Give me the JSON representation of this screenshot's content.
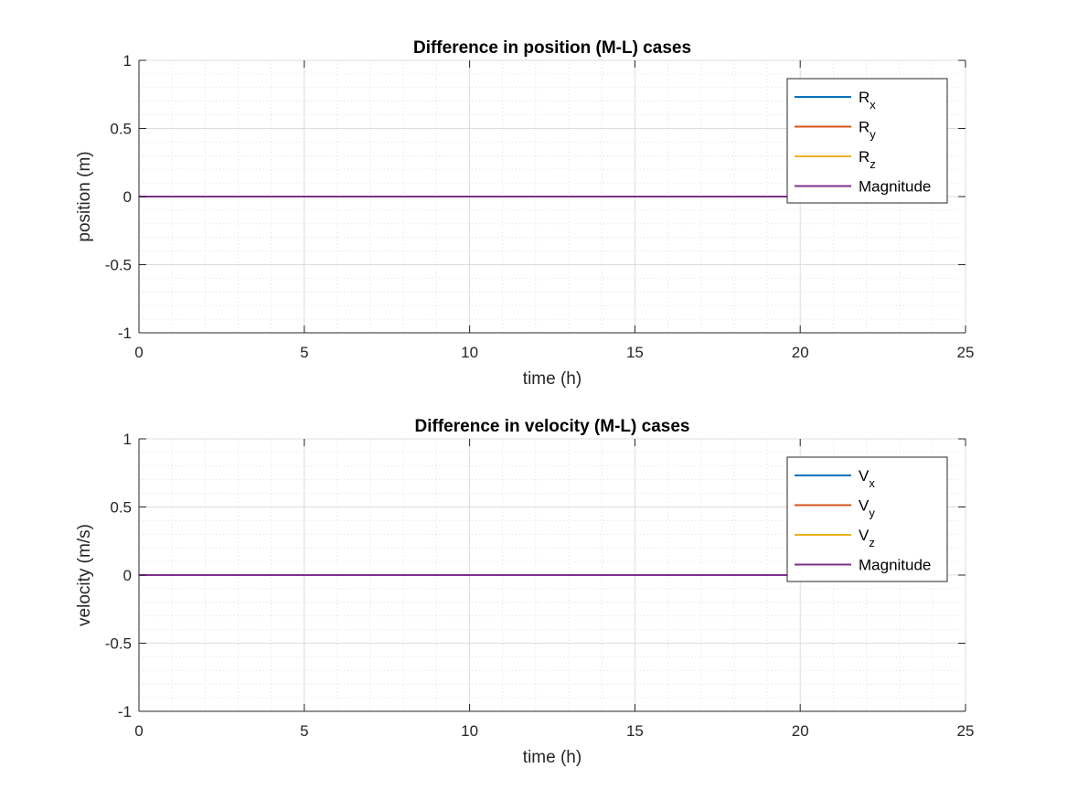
{
  "chart_data": [
    {
      "type": "line",
      "title": "Difference in position (M-L) cases",
      "xlabel": "time (h)",
      "ylabel": "position (m)",
      "xlim": [
        0,
        25
      ],
      "ylim": [
        -1,
        1
      ],
      "xticks": [
        0,
        5,
        10,
        15,
        20,
        25
      ],
      "yticks": [
        -1,
        -0.5,
        0,
        0.5,
        1
      ],
      "xtick_labels": [
        "0",
        "5",
        "10",
        "15",
        "20",
        "25"
      ],
      "ytick_labels": [
        "-1",
        "-0.5",
        "0",
        "0.5",
        "1"
      ],
      "grid": true,
      "minor_grid": true,
      "legend_position": "top-right",
      "series": [
        {
          "name": "R",
          "sub": "x",
          "color": "#0072BD",
          "x": [
            0,
            24
          ],
          "y": [
            0,
            0
          ]
        },
        {
          "name": "R",
          "sub": "y",
          "color": "#D95319",
          "x": [
            0,
            24
          ],
          "y": [
            0,
            0
          ]
        },
        {
          "name": "R",
          "sub": "z",
          "color": "#EDB120",
          "x": [
            0,
            24
          ],
          "y": [
            0,
            0
          ]
        },
        {
          "name": "Magnitude",
          "sub": "",
          "color": "#7E2F8E",
          "x": [
            0,
            24
          ],
          "y": [
            0,
            0
          ]
        }
      ]
    },
    {
      "type": "line",
      "title": "Difference in velocity (M-L) cases",
      "xlabel": "time (h)",
      "ylabel": "velocity (m/s)",
      "xlim": [
        0,
        25
      ],
      "ylim": [
        -1,
        1
      ],
      "xticks": [
        0,
        5,
        10,
        15,
        20,
        25
      ],
      "yticks": [
        -1,
        -0.5,
        0,
        0.5,
        1
      ],
      "xtick_labels": [
        "0",
        "5",
        "10",
        "15",
        "20",
        "25"
      ],
      "ytick_labels": [
        "-1",
        "-0.5",
        "0",
        "0.5",
        "1"
      ],
      "grid": true,
      "minor_grid": true,
      "legend_position": "top-right",
      "series": [
        {
          "name": "V",
          "sub": "x",
          "color": "#0072BD",
          "x": [
            0,
            24
          ],
          "y": [
            0,
            0
          ]
        },
        {
          "name": "V",
          "sub": "y",
          "color": "#D95319",
          "x": [
            0,
            24
          ],
          "y": [
            0,
            0
          ]
        },
        {
          "name": "V",
          "sub": "z",
          "color": "#EDB120",
          "x": [
            0,
            24
          ],
          "y": [
            0,
            0
          ]
        },
        {
          "name": "Magnitude",
          "sub": "",
          "color": "#7E2F8E",
          "x": [
            0,
            24
          ],
          "y": [
            0,
            0
          ]
        }
      ]
    }
  ]
}
